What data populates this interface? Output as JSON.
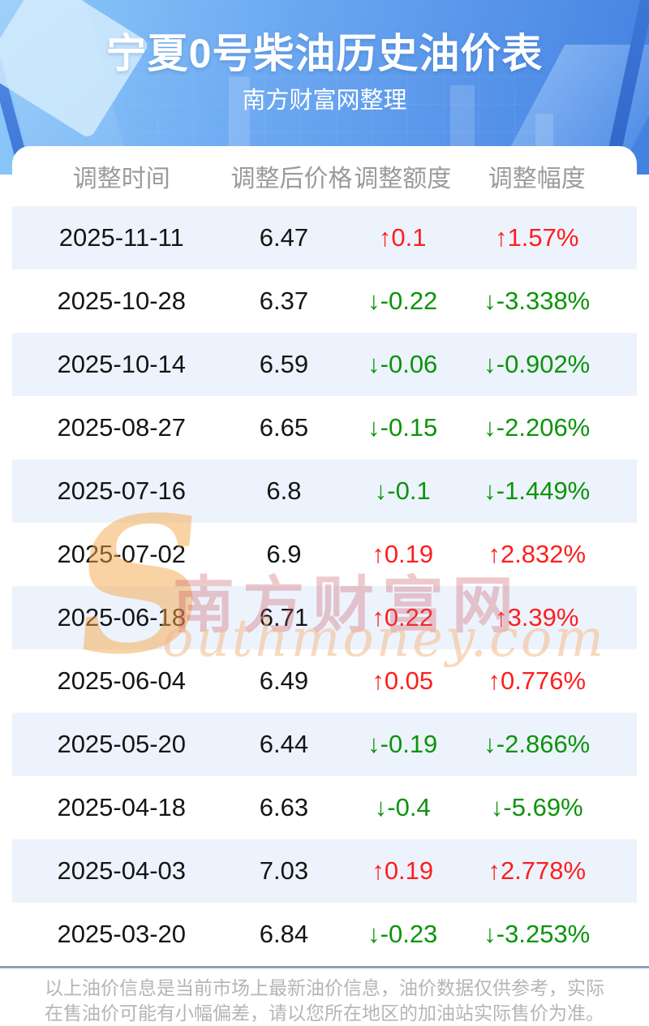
{
  "page": {
    "title": "宁夏0号柴油历史油价表",
    "subtitle": "南方财富网整理"
  },
  "table": {
    "columns": [
      "调整时间",
      "调整后价格",
      "调整额度",
      "调整幅度"
    ],
    "rows": [
      {
        "date": "2025-11-11",
        "price": "6.47",
        "amount": "↑0.1",
        "percent": "↑1.57%",
        "direction": "up"
      },
      {
        "date": "2025-10-28",
        "price": "6.37",
        "amount": "↓-0.22",
        "percent": "↓-3.338%",
        "direction": "down"
      },
      {
        "date": "2025-10-14",
        "price": "6.59",
        "amount": "↓-0.06",
        "percent": "↓-0.902%",
        "direction": "down"
      },
      {
        "date": "2025-08-27",
        "price": "6.65",
        "amount": "↓-0.15",
        "percent": "↓-2.206%",
        "direction": "down"
      },
      {
        "date": "2025-07-16",
        "price": "6.8",
        "amount": "↓-0.1",
        "percent": "↓-1.449%",
        "direction": "down"
      },
      {
        "date": "2025-07-02",
        "price": "6.9",
        "amount": "↑0.19",
        "percent": "↑2.832%",
        "direction": "up"
      },
      {
        "date": "2025-06-18",
        "price": "6.71",
        "amount": "↑0.22",
        "percent": "↑3.39%",
        "direction": "up"
      },
      {
        "date": "2025-06-04",
        "price": "6.49",
        "amount": "↑0.05",
        "percent": "↑0.776%",
        "direction": "up"
      },
      {
        "date": "2025-05-20",
        "price": "6.44",
        "amount": "↓-0.19",
        "percent": "↓-2.866%",
        "direction": "down"
      },
      {
        "date": "2025-04-18",
        "price": "6.63",
        "amount": "↓-0.4",
        "percent": "↓-5.69%",
        "direction": "down"
      },
      {
        "date": "2025-04-03",
        "price": "7.03",
        "amount": "↑0.19",
        "percent": "↑2.778%",
        "direction": "up"
      },
      {
        "date": "2025-03-20",
        "price": "6.84",
        "amount": "↓-0.23",
        "percent": "↓-3.253%",
        "direction": "down"
      }
    ]
  },
  "watermark": {
    "initial": "S",
    "cn": "南方财富网",
    "en": "outhmoney.com"
  },
  "footer": {
    "line1": "以上油价信息是当前市场上最新油价信息，油价数据仅供参考，实际",
    "line2": "在售油价可能有小幅偏差，请以您所在地区的加油站实际售价为准。"
  },
  "colors": {
    "up": "#fe1e1e",
    "down": "#0b940b",
    "row_stripe": "#edf3fc",
    "header_text": "#9b9b9b",
    "hero_gradient_start": "#8ecafa",
    "hero_gradient_end": "#4381e2",
    "divider": "#8ba3ba",
    "footer_text": "#b5b5b5"
  }
}
